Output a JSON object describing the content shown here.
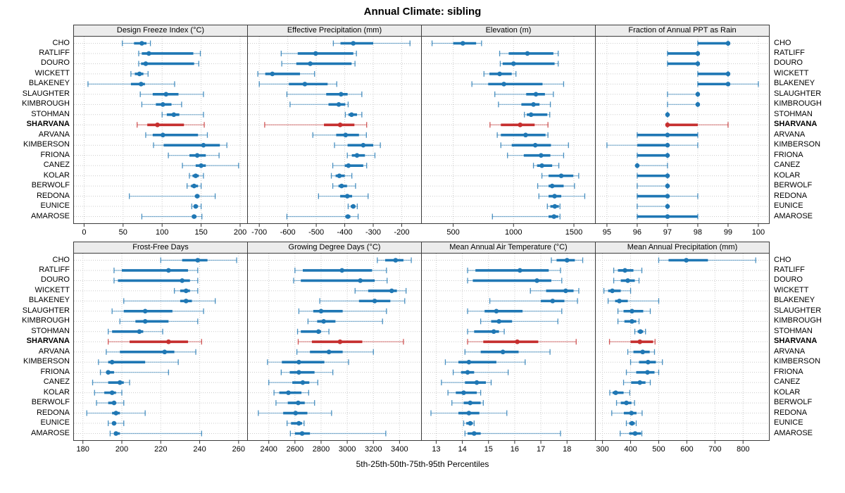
{
  "title": "Annual Climate: sibling",
  "footer": "5th-25th-50th-75th-95th Percentiles",
  "percentile_labels": [
    "5th",
    "25th",
    "50th",
    "75th",
    "95th"
  ],
  "highlight_station": "SHARVANA",
  "colors": {
    "series": "#1f77b4",
    "highlight": "#c62f2f",
    "grid": "#cccccc",
    "panel_border": "#3c3c3c",
    "header_bg": "#ececec",
    "tick": "#333333"
  },
  "stations": [
    "CHO",
    "RATLIFF",
    "DOURO",
    "WICKETT",
    "BLAKENEY",
    "SLAUGHTER",
    "KIMBROUGH",
    "STOHMAN",
    "SHARVANA",
    "ARVANA",
    "KIMBERSON",
    "FRIONA",
    "CANEZ",
    "KOLAR",
    "BERWOLF",
    "REDONA",
    "EUNICE",
    "AMAROSE"
  ],
  "chart_data": [
    {
      "type": "dot-whisker",
      "title": "Design Freeze Index (°C)",
      "xlim": [
        -13,
        209
      ],
      "ticks": [
        0,
        50,
        100,
        150,
        200
      ],
      "values": [
        [
          49,
          64,
          74,
          80,
          85
        ],
        [
          70,
          74,
          83,
          140,
          149
        ],
        [
          70,
          73,
          79,
          141,
          147
        ],
        [
          60,
          65,
          71,
          76,
          82
        ],
        [
          5,
          60,
          73,
          78,
          116
        ],
        [
          72,
          88,
          105,
          121,
          153
        ],
        [
          74,
          92,
          101,
          112,
          125
        ],
        [
          100,
          106,
          115,
          122,
          153
        ],
        [
          68,
          81,
          94,
          128,
          154
        ],
        [
          79,
          88,
          101,
          146,
          158
        ],
        [
          89,
          102,
          153,
          174,
          183
        ],
        [
          108,
          135,
          145,
          156,
          173
        ],
        [
          126,
          143,
          150,
          156,
          198
        ],
        [
          135,
          139,
          143,
          147,
          153
        ],
        [
          132,
          137,
          141,
          146,
          150
        ],
        [
          58,
          142,
          145,
          148,
          168
        ],
        [
          138,
          141,
          143,
          146,
          150
        ],
        [
          74,
          138,
          141,
          144,
          151
        ]
      ]
    },
    {
      "type": "dot-whisker",
      "title": "Effective Precipitation (mm)",
      "xlim": [
        -740,
        -132
      ],
      "ticks": [
        -700,
        -600,
        -500,
        -400,
        -300,
        -200
      ],
      "values": [
        [
          -440,
          -415,
          -370,
          -300,
          -171
        ],
        [
          -623,
          -565,
          -502,
          -370,
          -359
        ],
        [
          -621,
          -570,
          -521,
          -376,
          -364
        ],
        [
          -705,
          -679,
          -654,
          -557,
          -506
        ],
        [
          -700,
          -596,
          -540,
          -460,
          -428
        ],
        [
          -603,
          -465,
          -413,
          -390,
          -340
        ],
        [
          -592,
          -457,
          -421,
          -398,
          -388
        ],
        [
          -398,
          -387,
          -376,
          -357,
          -340
        ],
        [
          -681,
          -473,
          -416,
          -366,
          -323
        ],
        [
          -512,
          -430,
          -397,
          -350,
          -324
        ],
        [
          -436,
          -390,
          -335,
          -300,
          -275
        ],
        [
          -391,
          -375,
          -357,
          -329,
          -294
        ],
        [
          -442,
          -400,
          -387,
          -335,
          -323
        ],
        [
          -447,
          -432,
          -419,
          -400,
          -375
        ],
        [
          -442,
          -422,
          -411,
          -392,
          -362
        ],
        [
          -492,
          -416,
          -391,
          -374,
          -318
        ],
        [
          -388,
          -379,
          -370,
          -363,
          -356
        ],
        [
          -603,
          -398,
          -389,
          -380,
          -353
        ]
      ]
    },
    {
      "type": "dot-whisker",
      "title": "Elevation (m)",
      "xlim": [
        240,
        1675
      ],
      "ticks": [
        500,
        1000,
        1500
      ],
      "values": [
        [
          325,
          500,
          580,
          690,
          735
        ],
        [
          885,
          960,
          1115,
          1330,
          1370
        ],
        [
          890,
          910,
          1000,
          1340,
          1370
        ],
        [
          755,
          800,
          885,
          985,
          1020
        ],
        [
          655,
          790,
          920,
          1240,
          1415
        ],
        [
          845,
          1105,
          1185,
          1260,
          1330
        ],
        [
          875,
          1065,
          1165,
          1215,
          1305
        ],
        [
          1090,
          1110,
          1145,
          1280,
          1300
        ],
        [
          805,
          895,
          1055,
          1175,
          1285
        ],
        [
          865,
          895,
          1100,
          1265,
          1285
        ],
        [
          895,
          985,
          1180,
          1310,
          1455
        ],
        [
          950,
          1085,
          1228,
          1305,
          1415
        ],
        [
          1165,
          1195,
          1235,
          1320,
          1375
        ],
        [
          1235,
          1290,
          1395,
          1495,
          1540
        ],
        [
          1200,
          1290,
          1320,
          1415,
          1505
        ],
        [
          1210,
          1290,
          1340,
          1395,
          1590
        ],
        [
          1280,
          1305,
          1342,
          1375,
          1385
        ],
        [
          825,
          1290,
          1335,
          1370,
          1385
        ]
      ]
    },
    {
      "type": "dot-whisker",
      "title": "Fraction of Annual PPT as Rain",
      "xlim": [
        94.63,
        100.35
      ],
      "ticks": [
        95,
        96,
        97,
        98,
        99,
        100
      ],
      "values": [
        [
          98,
          98,
          99,
          99,
          99
        ],
        [
          97,
          97,
          98,
          98,
          98
        ],
        [
          97,
          97,
          98,
          98,
          98
        ],
        [
          98,
          98,
          99,
          99,
          99
        ],
        [
          98,
          98,
          99,
          99,
          100
        ],
        [
          97,
          98,
          98,
          98,
          98
        ],
        [
          97,
          98,
          98,
          98,
          98
        ],
        [
          97,
          97,
          97,
          97,
          97
        ],
        [
          97,
          97,
          97,
          98,
          99
        ],
        [
          96,
          96,
          97,
          98,
          98
        ],
        [
          95,
          96,
          97,
          97,
          98
        ],
        [
          96,
          96,
          97,
          97,
          97
        ],
        [
          96,
          96,
          96,
          96,
          97
        ],
        [
          96,
          96,
          97,
          97,
          97
        ],
        [
          96,
          97,
          97,
          97,
          97
        ],
        [
          96,
          96,
          97,
          97,
          98
        ],
        [
          96,
          97,
          97,
          97,
          97
        ],
        [
          96,
          96,
          97,
          98,
          98
        ]
      ]
    },
    {
      "type": "dot-whisker",
      "title": "Frost-Free Days",
      "xlim": [
        175.4,
        264.4
      ],
      "ticks": [
        180,
        200,
        220,
        240,
        260
      ],
      "values": [
        [
          220,
          231,
          239,
          244,
          259
        ],
        [
          196,
          200,
          224,
          234,
          239
        ],
        [
          196,
          198,
          231,
          235,
          239
        ],
        [
          227,
          230,
          233,
          235,
          239
        ],
        [
          201,
          230,
          233,
          236,
          248
        ],
        [
          195,
          201,
          212,
          226,
          242
        ],
        [
          199,
          207,
          212,
          224,
          239
        ],
        [
          193,
          195,
          209,
          211,
          221
        ],
        [
          193,
          204,
          224,
          234,
          241
        ],
        [
          192,
          199,
          222,
          227,
          238
        ],
        [
          188,
          193,
          195,
          212,
          229
        ],
        [
          189,
          192,
          193,
          196,
          224
        ],
        [
          185,
          193,
          199,
          201,
          204
        ],
        [
          186,
          191,
          195,
          197,
          200
        ],
        [
          187,
          193,
          196,
          197,
          201
        ],
        [
          182,
          195,
          197,
          199,
          212
        ],
        [
          193,
          195,
          196,
          197,
          201
        ],
        [
          194,
          196,
          197,
          199,
          241
        ]
      ]
    },
    {
      "type": "dot-whisker",
      "title": "Growing Degree Days (°C)",
      "xlim": [
        2240,
        3565
      ],
      "ticks": [
        2400,
        2600,
        2800,
        3000,
        3200,
        3400
      ],
      "values": [
        [
          3230,
          3290,
          3370,
          3430,
          3490
        ],
        [
          2600,
          2660,
          2960,
          3190,
          3300
        ],
        [
          2590,
          2645,
          3100,
          3210,
          3305
        ],
        [
          3060,
          3160,
          3340,
          3380,
          3450
        ],
        [
          2790,
          3090,
          3210,
          3330,
          3440
        ],
        [
          2630,
          2740,
          2800,
          2965,
          3300
        ],
        [
          2700,
          2770,
          2820,
          2910,
          3270
        ],
        [
          2620,
          2645,
          2780,
          2800,
          2860
        ],
        [
          2625,
          2730,
          2945,
          3115,
          3430
        ],
        [
          2615,
          2715,
          2860,
          2965,
          3200
        ],
        [
          2390,
          2500,
          2630,
          2825,
          3010
        ],
        [
          2495,
          2560,
          2630,
          2750,
          2890
        ],
        [
          2400,
          2580,
          2660,
          2710,
          2775
        ],
        [
          2440,
          2480,
          2550,
          2650,
          2705
        ],
        [
          2455,
          2545,
          2625,
          2675,
          2750
        ],
        [
          2320,
          2510,
          2605,
          2695,
          2880
        ],
        [
          2540,
          2570,
          2630,
          2655,
          2670
        ],
        [
          2565,
          2600,
          2655,
          2715,
          3295
        ]
      ]
    },
    {
      "type": "dot-whisker",
      "title": "Mean Annual Air Temperature (°C)",
      "xlim": [
        12.45,
        19.07
      ],
      "ticks": [
        13,
        14,
        15,
        16,
        17,
        18
      ],
      "values": [
        [
          17.4,
          17.6,
          18.0,
          18.3,
          18.6
        ],
        [
          14.2,
          14.5,
          16.2,
          17.3,
          17.75
        ],
        [
          14.2,
          14.4,
          16.85,
          17.4,
          17.8
        ],
        [
          16.6,
          17.2,
          17.95,
          18.25,
          18.45
        ],
        [
          15.05,
          17.0,
          17.45,
          17.9,
          18.4
        ],
        [
          14.2,
          14.85,
          15.3,
          16.3,
          17.8
        ],
        [
          14.7,
          15.1,
          15.4,
          15.9,
          17.65
        ],
        [
          14.2,
          14.45,
          15.2,
          15.4,
          15.6
        ],
        [
          14.2,
          14.8,
          16.1,
          16.9,
          18.35
        ],
        [
          14.1,
          14.7,
          15.55,
          16.15,
          17.35
        ],
        [
          13.35,
          13.85,
          14.25,
          15.3,
          16.4
        ],
        [
          13.65,
          13.95,
          14.2,
          14.45,
          15.75
        ],
        [
          13.2,
          14.1,
          14.55,
          14.9,
          15.1
        ],
        [
          13.45,
          13.75,
          14.05,
          14.55,
          14.7
        ],
        [
          13.6,
          14.05,
          14.3,
          14.7,
          14.8
        ],
        [
          12.8,
          13.85,
          14.25,
          14.65,
          15.7
        ],
        [
          14.05,
          14.15,
          14.3,
          14.4,
          14.45
        ],
        [
          14.1,
          14.2,
          14.45,
          14.7,
          17.75
        ]
      ]
    },
    {
      "type": "dot-whisker",
      "title": "Mean Annual Precipitation (mm)",
      "xlim": [
        276,
        892
      ],
      "ticks": [
        300,
        400,
        500,
        600,
        700,
        800
      ],
      "values": [
        [
          500,
          535,
          598,
          675,
          845
        ],
        [
          340,
          355,
          380,
          410,
          440
        ],
        [
          340,
          365,
          390,
          415,
          430
        ],
        [
          305,
          320,
          335,
          365,
          400
        ],
        [
          320,
          345,
          360,
          390,
          500
        ],
        [
          355,
          375,
          405,
          445,
          470
        ],
        [
          355,
          378,
          405,
          420,
          430
        ],
        [
          415,
          425,
          435,
          445,
          453
        ],
        [
          325,
          400,
          433,
          480,
          487
        ],
        [
          390,
          410,
          443,
          468,
          485
        ],
        [
          400,
          430,
          462,
          490,
          513
        ],
        [
          385,
          420,
          460,
          485,
          500
        ],
        [
          375,
          402,
          433,
          453,
          470
        ],
        [
          326,
          336,
          347,
          375,
          397
        ],
        [
          350,
          365,
          385,
          403,
          414
        ],
        [
          333,
          376,
          403,
          421,
          441
        ],
        [
          385,
          395,
          405,
          415,
          420
        ],
        [
          363,
          395,
          416,
          437,
          440
        ]
      ]
    }
  ]
}
